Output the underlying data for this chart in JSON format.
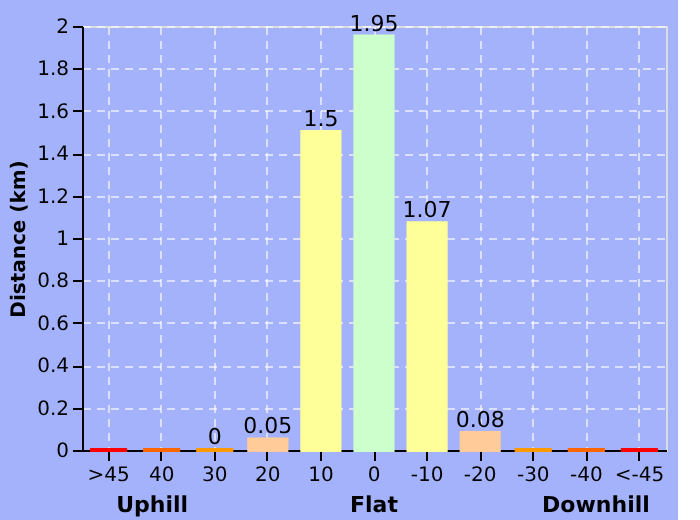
{
  "chart_data": {
    "type": "bar",
    "ylabel": "Distance (km)",
    "categories": [
      ">45",
      "40",
      "30",
      "20",
      "10",
      "0",
      "-10",
      "-20",
      "-30",
      "-40",
      "<-45"
    ],
    "values": [
      0,
      0,
      0,
      0.05,
      1.5,
      1.95,
      1.07,
      0.08,
      0,
      0,
      0
    ],
    "value_labels": [
      null,
      null,
      "0",
      "0.05",
      "1.5",
      "1.95",
      "1.07",
      "0.08",
      null,
      null,
      null
    ],
    "colors": [
      "#ff0000",
      "#ff6600",
      "#ff9900",
      "#ffcc99",
      "#ffff99",
      "#ccffcc",
      "#ffff99",
      "#ffcc99",
      "#ff9900",
      "#ff6600",
      "#ff0000"
    ],
    "ylim": [
      0,
      2
    ],
    "yticks": [
      0,
      0.2,
      0.4,
      0.6,
      0.8,
      1,
      1.2,
      1.4,
      1.6,
      1.8,
      2
    ],
    "grid": true,
    "annotations": [
      "Uphill",
      "Flat",
      "Downhill"
    ]
  }
}
